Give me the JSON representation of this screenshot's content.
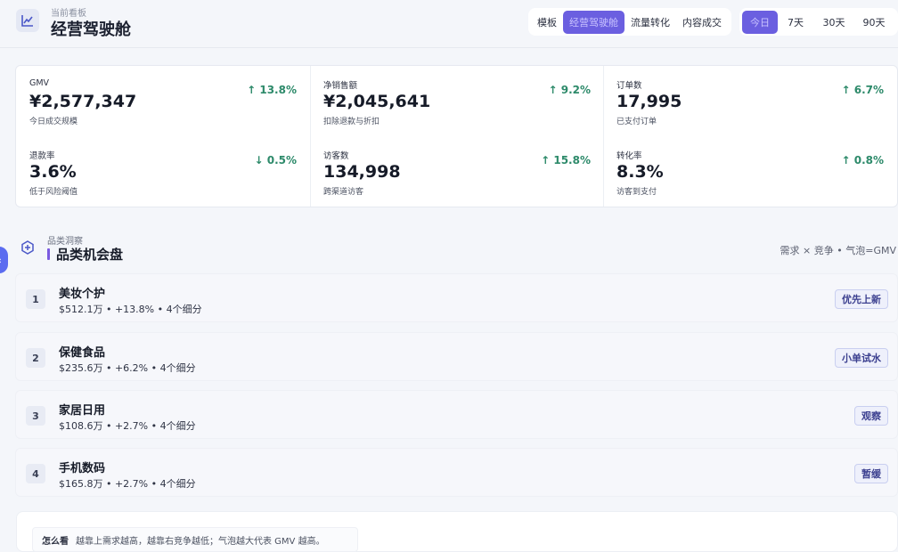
{
  "header": {
    "subtitle": "当前看板",
    "title": "经营驾驶舱",
    "view_tabs": [
      "模板",
      "经营驾驶舱",
      "流量转化",
      "内容成交"
    ],
    "active_view": 1,
    "period_tabs": [
      "今日",
      "7天",
      "30天",
      "90天"
    ],
    "active_period": 0
  },
  "metrics": [
    {
      "label": "GMV",
      "value": "¥2,577,347",
      "sub": "今日成交规模",
      "delta": "↑ 13.8%",
      "trend": "up"
    },
    {
      "label": "净销售额",
      "value": "¥2,045,641",
      "sub": "扣除退款与折扣",
      "delta": "↑ 9.2%",
      "trend": "up"
    },
    {
      "label": "订单数",
      "value": "17,995",
      "sub": "已支付订单",
      "delta": "↑ 6.7%",
      "trend": "up"
    },
    {
      "label": "退款率",
      "value": "3.6%",
      "sub": "低于风险阈值",
      "delta": "↓ 0.5%",
      "trend": "down"
    },
    {
      "label": "访客数",
      "value": "134,998",
      "sub": "跨渠道访客",
      "delta": "↑ 15.8%",
      "trend": "up"
    },
    {
      "label": "转化率",
      "value": "8.3%",
      "sub": "访客到支付",
      "delta": "↑ 0.8%",
      "trend": "up"
    }
  ],
  "section": {
    "subtitle": "品类洞察",
    "title": "品类机会盘",
    "hint": "需求 × 竞争 • 气泡=GMV"
  },
  "categories": [
    {
      "rank": "1",
      "name": "美妆个护",
      "meta": "$512.1万 • +13.8% • 4个细分",
      "tag": "优先上新"
    },
    {
      "rank": "2",
      "name": "保健食品",
      "meta": "$235.6万 • +6.2% • 4个细分",
      "tag": "小单试水"
    },
    {
      "rank": "3",
      "name": "家居日用",
      "meta": "$108.6万 • +2.7% • 4个细分",
      "tag": "观察"
    },
    {
      "rank": "4",
      "name": "手机数码",
      "meta": "$165.8万 • +2.7% • 4个细分",
      "tag": "暂缓"
    }
  ],
  "note": {
    "key": "怎么看",
    "text": "越靠上需求越高，越靠右竞争越低；气泡越大代表 GMV 越高。"
  },
  "colors": {
    "accent": "#6b5fe0",
    "up": "#2d8a6a",
    "down": "#2d8a6a",
    "fab": "#5b6cf0"
  },
  "icons": {
    "logo": "line-chart-icon",
    "section": "hexagon-plus-icon",
    "fab": "chevron-left-icon"
  }
}
